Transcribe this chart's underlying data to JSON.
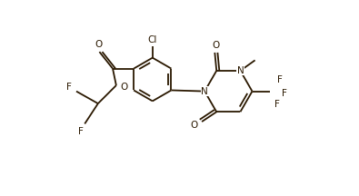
{
  "bg_color": "#ffffff",
  "bond_color": "#2a1800",
  "label_color": "#2a1800",
  "line_width": 1.3,
  "figsize": [
    3.95,
    2.16
  ],
  "dpi": 100,
  "xlim": [
    0,
    7.9
  ],
  "ylim": [
    0,
    4.32
  ]
}
